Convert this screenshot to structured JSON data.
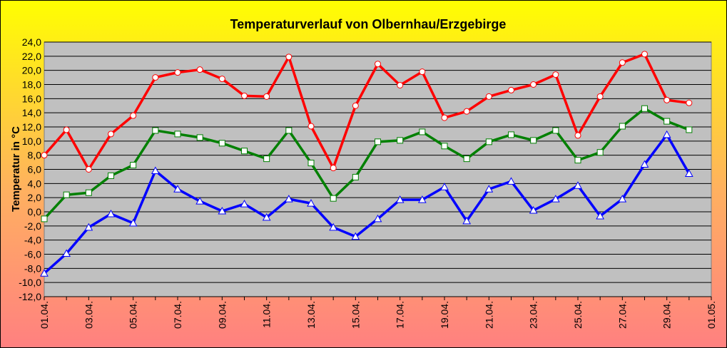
{
  "chart_data": {
    "type": "line",
    "title": "Temperaturverlauf von Olbernhau/Erzgebirge",
    "y_label": "Temperatur in °C",
    "categories": [
      "01.04.",
      null,
      "03.04.",
      null,
      "05.04.",
      null,
      "07.04.",
      null,
      "09.04.",
      null,
      "11.04.",
      null,
      "13.04.",
      null,
      "15.04.",
      null,
      "17.04.",
      null,
      "19.04.",
      null,
      "21.04.",
      null,
      "23.04.",
      null,
      "25.04.",
      null,
      "27.04.",
      null,
      "29.04.",
      null,
      "01.05."
    ],
    "series": [
      {
        "color": "#ff0000",
        "marker": "circle",
        "values": [
          8.0,
          11.6,
          6.0,
          11.0,
          13.6,
          19.0,
          19.7,
          20.1,
          18.8,
          16.4,
          16.3,
          21.9,
          12.1,
          6.2,
          15.0,
          20.9,
          17.9,
          19.8,
          13.3,
          14.2,
          16.3,
          17.2,
          18.0,
          19.4,
          10.8,
          16.3,
          21.1,
          22.3,
          15.8,
          15.4,
          null
        ]
      },
      {
        "color": "#008000",
        "marker": "square",
        "values": [
          -1.0,
          2.4,
          2.7,
          5.1,
          6.6,
          11.5,
          11.0,
          10.5,
          9.7,
          8.6,
          7.5,
          11.5,
          6.9,
          1.9,
          4.9,
          9.9,
          10.1,
          11.3,
          9.3,
          7.5,
          9.9,
          10.9,
          10.1,
          11.5,
          7.3,
          8.4,
          12.1,
          14.6,
          12.8,
          11.6,
          null
        ]
      },
      {
        "color": "#0000ff",
        "marker": "triangle",
        "values": [
          -8.7,
          -5.9,
          -2.2,
          -0.3,
          -1.6,
          5.8,
          3.2,
          1.5,
          0.1,
          1.1,
          -0.8,
          1.8,
          1.2,
          -2.2,
          -3.5,
          -1.0,
          1.7,
          1.7,
          3.5,
          -1.3,
          3.2,
          4.3,
          0.2,
          1.8,
          3.7,
          -0.6,
          1.8,
          6.7,
          10.9,
          5.4,
          null
        ]
      }
    ],
    "ylim": [
      -12,
      24
    ],
    "yticks": [
      {
        "value": -12,
        "label": "-12,0"
      },
      {
        "value": -10,
        "label": "-10,0"
      },
      {
        "value": -8,
        "label": "-8,0"
      },
      {
        "value": -6,
        "label": "-6,0"
      },
      {
        "value": -4,
        "label": "-4,0"
      },
      {
        "value": -2,
        "label": "-2,0"
      },
      {
        "value": 0,
        "label": "0,0"
      },
      {
        "value": 2,
        "label": "2,0"
      },
      {
        "value": 4,
        "label": "4,0"
      },
      {
        "value": 6,
        "label": "6,0"
      },
      {
        "value": 8,
        "label": "8,0"
      },
      {
        "value": 10,
        "label": "10,0"
      },
      {
        "value": 12,
        "label": "12,0"
      },
      {
        "value": 14,
        "label": "14,0"
      },
      {
        "value": 16,
        "label": "16,0"
      },
      {
        "value": 18,
        "label": "18,0"
      },
      {
        "value": 20,
        "label": "20,0"
      },
      {
        "value": 22,
        "label": "22,0"
      },
      {
        "value": 24,
        "label": "24,0"
      }
    ],
    "grid": true
  }
}
